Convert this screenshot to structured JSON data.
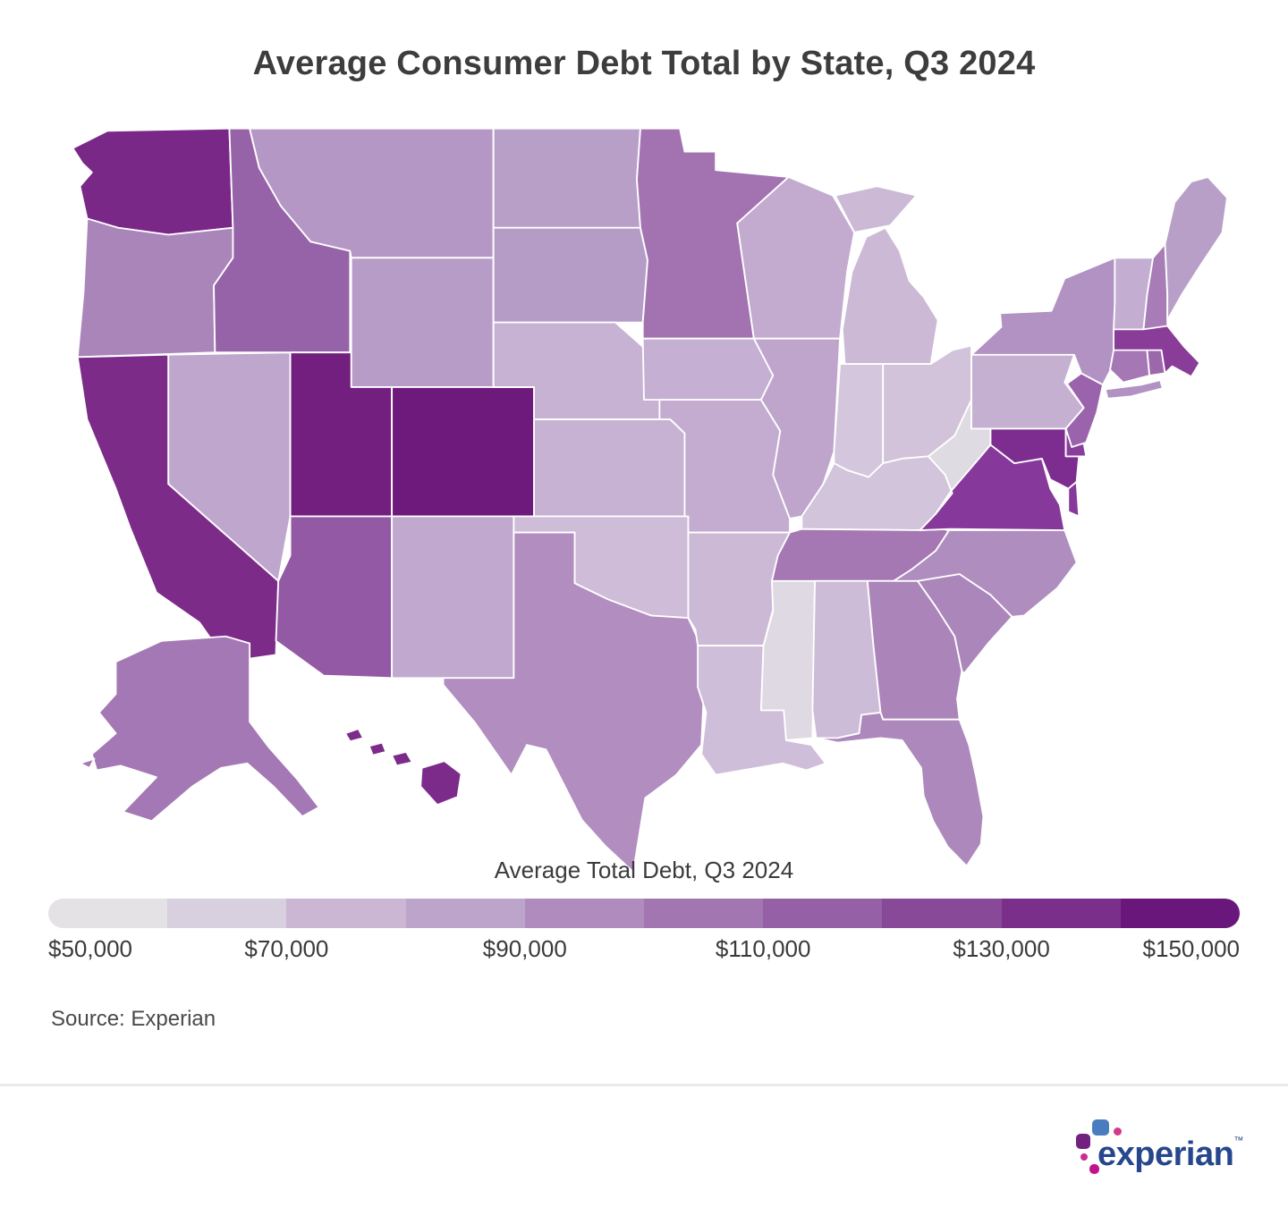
{
  "title": "Average Consumer Debt Total by State, Q3 2024",
  "legend": {
    "title": "Average Total Debt, Q3 2024",
    "tick_labels": [
      "$50,000",
      "$70,000",
      "$90,000",
      "$110,000",
      "$130,000",
      "$150,000"
    ],
    "segment_colors": [
      "#e4e2e4",
      "#d8cfdf",
      "#cbb6d4",
      "#bda4cb",
      "#af8bbe",
      "#a277b1",
      "#9560a5",
      "#884a98",
      "#7a2f8a",
      "#6a177b"
    ]
  },
  "source": "Source: Experian",
  "logo": {
    "wordmark": "experian",
    "tm": "™",
    "wordmark_color": "#26478d"
  },
  "chart_data": {
    "type": "choropleth_map",
    "region": "United States (50 states)",
    "metric": "Average total consumer debt balance, Q3 2024",
    "scale": {
      "min": 50000,
      "max": 150000,
      "tick_interval": 20000,
      "segments": 10,
      "values_estimated_from_color_scale": true
    },
    "states": [
      {
        "abbr": "WA",
        "name": "Washington",
        "color": "#7a2888",
        "value_estimate": 135000
      },
      {
        "abbr": "OR",
        "name": "Oregon",
        "color": "#aa85b9",
        "value_estimate": 101000
      },
      {
        "abbr": "CA",
        "name": "California",
        "color": "#7c2b89",
        "value_estimate": 134000
      },
      {
        "abbr": "NV",
        "name": "Nevada",
        "color": "#bfa6cc",
        "value_estimate": 89000
      },
      {
        "abbr": "ID",
        "name": "Idaho",
        "color": "#9763a8",
        "value_estimate": 112000
      },
      {
        "abbr": "MT",
        "name": "Montana",
        "color": "#b597c5",
        "value_estimate": 92000
      },
      {
        "abbr": "WY",
        "name": "Wyoming",
        "color": "#b79cc7",
        "value_estimate": 91000
      },
      {
        "abbr": "UT",
        "name": "Utah",
        "color": "#731f80",
        "value_estimate": 140000
      },
      {
        "abbr": "CO",
        "name": "Colorado",
        "color": "#6e1a7c",
        "value_estimate": 144000
      },
      {
        "abbr": "AZ",
        "name": "Arizona",
        "color": "#9359a4",
        "value_estimate": 115000
      },
      {
        "abbr": "NM",
        "name": "New Mexico",
        "color": "#c1a8ce",
        "value_estimate": 87000
      },
      {
        "abbr": "ND",
        "name": "North Dakota",
        "color": "#b89fc8",
        "value_estimate": 90000
      },
      {
        "abbr": "SD",
        "name": "South Dakota",
        "color": "#b59cc6",
        "value_estimate": 92000
      },
      {
        "abbr": "NE",
        "name": "Nebraska",
        "color": "#c7b2d3",
        "value_estimate": 82000
      },
      {
        "abbr": "KS",
        "name": "Kansas",
        "color": "#c7b2d3",
        "value_estimate": 83000
      },
      {
        "abbr": "OK",
        "name": "Oklahoma",
        "color": "#cebcd8",
        "value_estimate": 77000
      },
      {
        "abbr": "TX",
        "name": "Texas",
        "color": "#b18dc0",
        "value_estimate": 95000
      },
      {
        "abbr": "MN",
        "name": "Minnesota",
        "color": "#a273b0",
        "value_estimate": 106000
      },
      {
        "abbr": "IA",
        "name": "Iowa",
        "color": "#c5afd2",
        "value_estimate": 84000
      },
      {
        "abbr": "MO",
        "name": "Missouri",
        "color": "#c3acd0",
        "value_estimate": 85000
      },
      {
        "abbr": "AR",
        "name": "Arkansas",
        "color": "#ccb9d6",
        "value_estimate": 78000
      },
      {
        "abbr": "LA",
        "name": "Louisiana",
        "color": "#cfbed9",
        "value_estimate": 76000
      },
      {
        "abbr": "WI",
        "name": "Wisconsin",
        "color": "#c3abd0",
        "value_estimate": 85000
      },
      {
        "abbr": "IL",
        "name": "Illinois",
        "color": "#bfa5cc",
        "value_estimate": 90000
      },
      {
        "abbr": "MS",
        "name": "Mississippi",
        "color": "#ded9e2",
        "value_estimate": 66000
      },
      {
        "abbr": "MI",
        "name": "Michigan",
        "color": "#ccb9d6",
        "value_estimate": 78000
      },
      {
        "abbr": "IN",
        "name": "Indiana",
        "color": "#d4c6dc",
        "value_estimate": 71000
      },
      {
        "abbr": "OH",
        "name": "Ohio",
        "color": "#d2c3da",
        "value_estimate": 74000
      },
      {
        "abbr": "KY",
        "name": "Kentucky",
        "color": "#d2c4db",
        "value_estimate": 72000
      },
      {
        "abbr": "TN",
        "name": "Tennessee",
        "color": "#a678b3",
        "value_estimate": 103000
      },
      {
        "abbr": "AL",
        "name": "Alabama",
        "color": "#cdbcd7",
        "value_estimate": 79000
      },
      {
        "abbr": "GA",
        "name": "Georgia",
        "color": "#ab84ba",
        "value_estimate": 100000
      },
      {
        "abbr": "FL",
        "name": "Florida",
        "color": "#ad88bc",
        "value_estimate": 98000
      },
      {
        "abbr": "SC",
        "name": "South Carolina",
        "color": "#ab86bb",
        "value_estimate": 99000
      },
      {
        "abbr": "NC",
        "name": "North Carolina",
        "color": "#af8dbe",
        "value_estimate": 96000
      },
      {
        "abbr": "VA",
        "name": "Virginia",
        "color": "#86399a",
        "value_estimate": 124000
      },
      {
        "abbr": "WV",
        "name": "West Virginia",
        "color": "#dfdbe3",
        "value_estimate": 62000
      },
      {
        "abbr": "MD",
        "name": "Maryland",
        "color": "#7d2c90",
        "value_estimate": 131000
      },
      {
        "abbr": "DE",
        "name": "Delaware",
        "color": "#8a3e9b",
        "value_estimate": 122000
      },
      {
        "abbr": "PA",
        "name": "Pennsylvania",
        "color": "#c5b0d2",
        "value_estimate": 84000
      },
      {
        "abbr": "NJ",
        "name": "New Jersey",
        "color": "#9b63ac",
        "value_estimate": 111000
      },
      {
        "abbr": "NY",
        "name": "New York",
        "color": "#b192c3",
        "value_estimate": 94000
      },
      {
        "abbr": "CT",
        "name": "Connecticut",
        "color": "#a577b4",
        "value_estimate": 104000
      },
      {
        "abbr": "RI",
        "name": "Rhode Island",
        "color": "#9d68ab",
        "value_estimate": 109000
      },
      {
        "abbr": "MA",
        "name": "Massachusetts",
        "color": "#8a3c99",
        "value_estimate": 122000
      },
      {
        "abbr": "VT",
        "name": "Vermont",
        "color": "#c3add1",
        "value_estimate": 86000
      },
      {
        "abbr": "NH",
        "name": "New Hampshire",
        "color": "#a87cb7",
        "value_estimate": 102000
      },
      {
        "abbr": "ME",
        "name": "Maine",
        "color": "#b89fc8",
        "value_estimate": 90000
      },
      {
        "abbr": "AK",
        "name": "Alaska",
        "color": "#a478b4",
        "value_estimate": 104000
      },
      {
        "abbr": "HI",
        "name": "Hawaii",
        "color": "#7c2b8a",
        "value_estimate": 134000
      }
    ]
  }
}
